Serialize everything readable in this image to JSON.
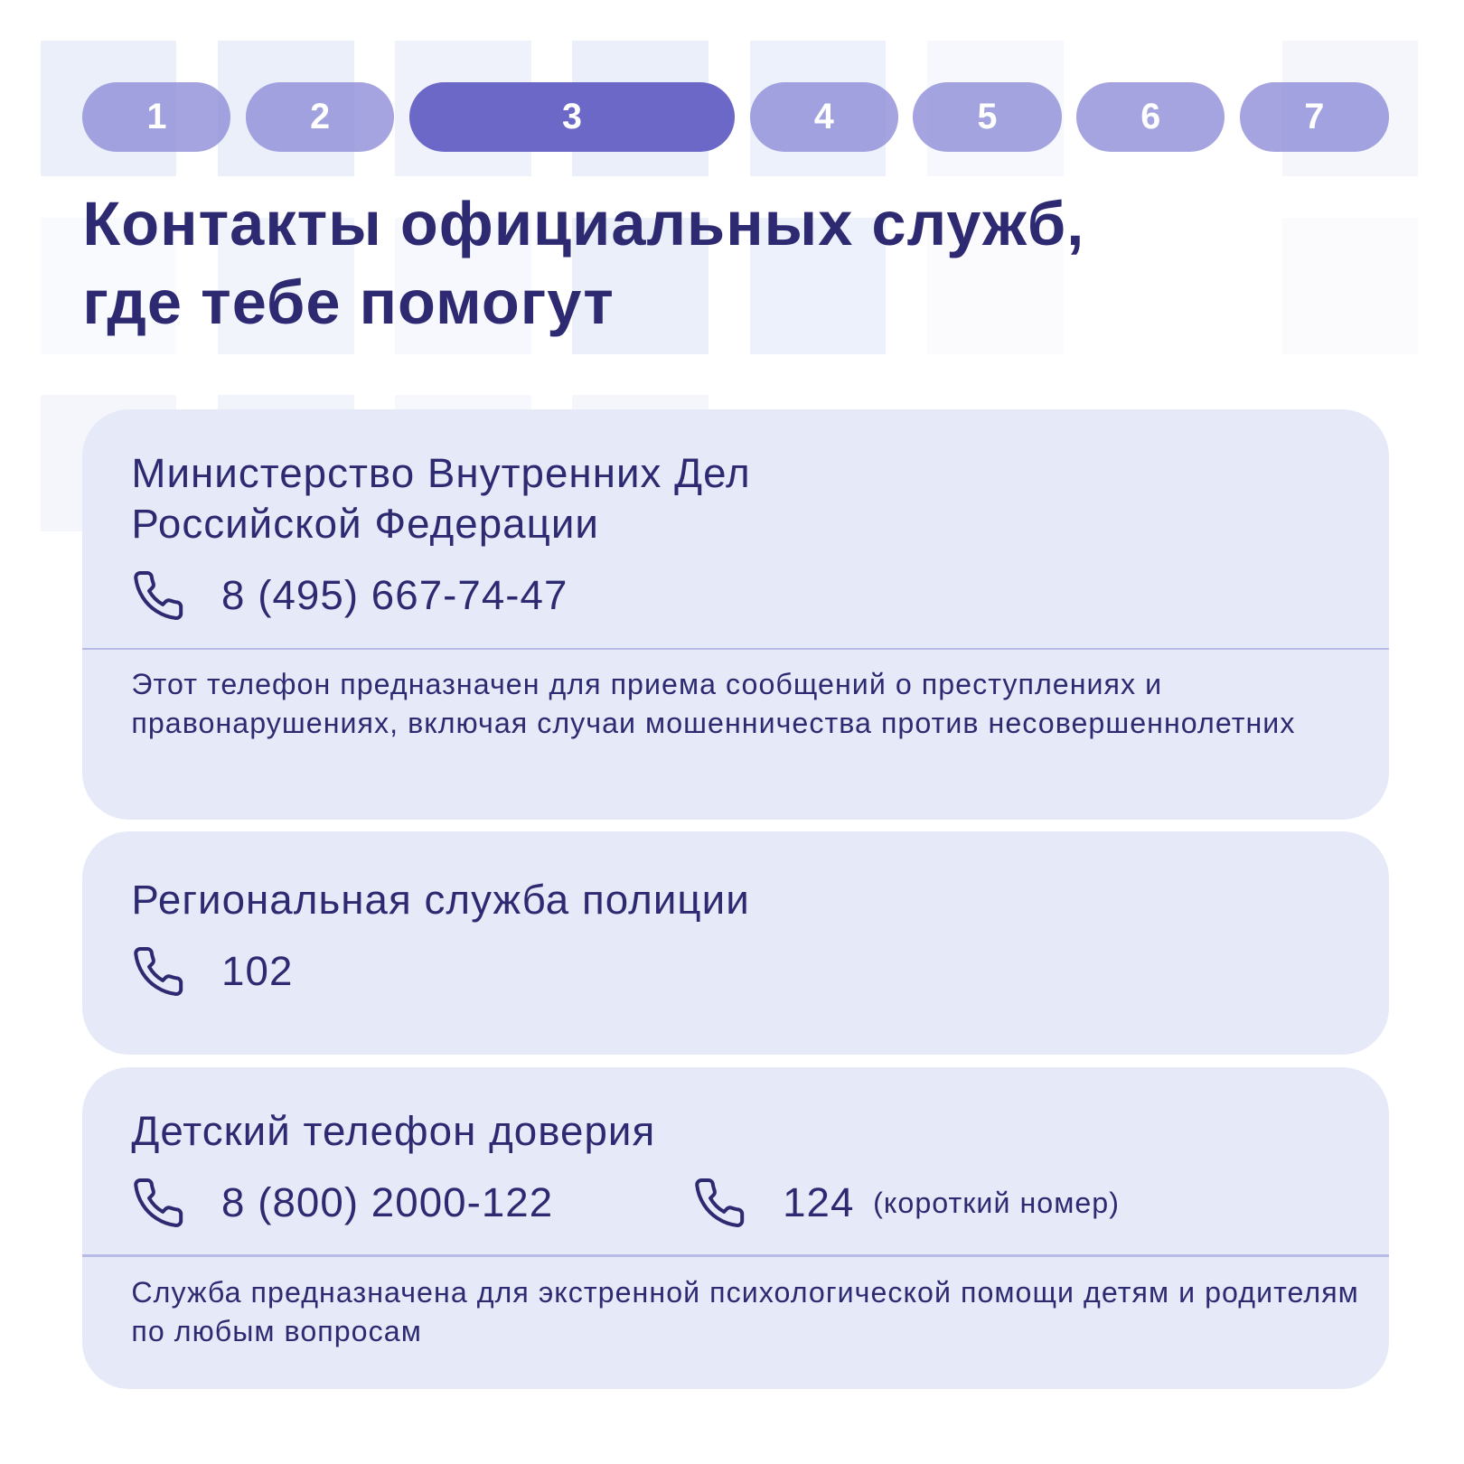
{
  "steps": [
    "1",
    "2",
    "3",
    "4",
    "5",
    "6",
    "7"
  ],
  "active_step": 3,
  "title_line1": "Контакты официальных служб,",
  "title_line2": "где тебе помогут",
  "cards": [
    {
      "name_line1": "Министерство Внутренних Дел",
      "name_line2": "Российской Федерации",
      "phone": "8 (495) 667-74-47",
      "icon": "phone-icon",
      "description": "Этот телефон предназначен для приема сообщений о преступлениях и правонарушениях, включая случаи мошенничества против несовершеннолетних"
    },
    {
      "name": "Региональная служба полиции",
      "phone": "102",
      "icon": "phone-icon"
    },
    {
      "name": "Детский телефон доверия",
      "phone": "8 (800) 2000-122",
      "phone2": "124",
      "phone2_note": "(короткий номер)",
      "icon": "phone-icon",
      "description": "Служба предназначена для экстренной психологической помощи детям и родителям по любым вопросам"
    }
  ],
  "colors": {
    "text": "#2e2a72",
    "active_step": "#6c68c8",
    "inactive_step": "#a3a2df",
    "card": "#e6eaf8"
  }
}
